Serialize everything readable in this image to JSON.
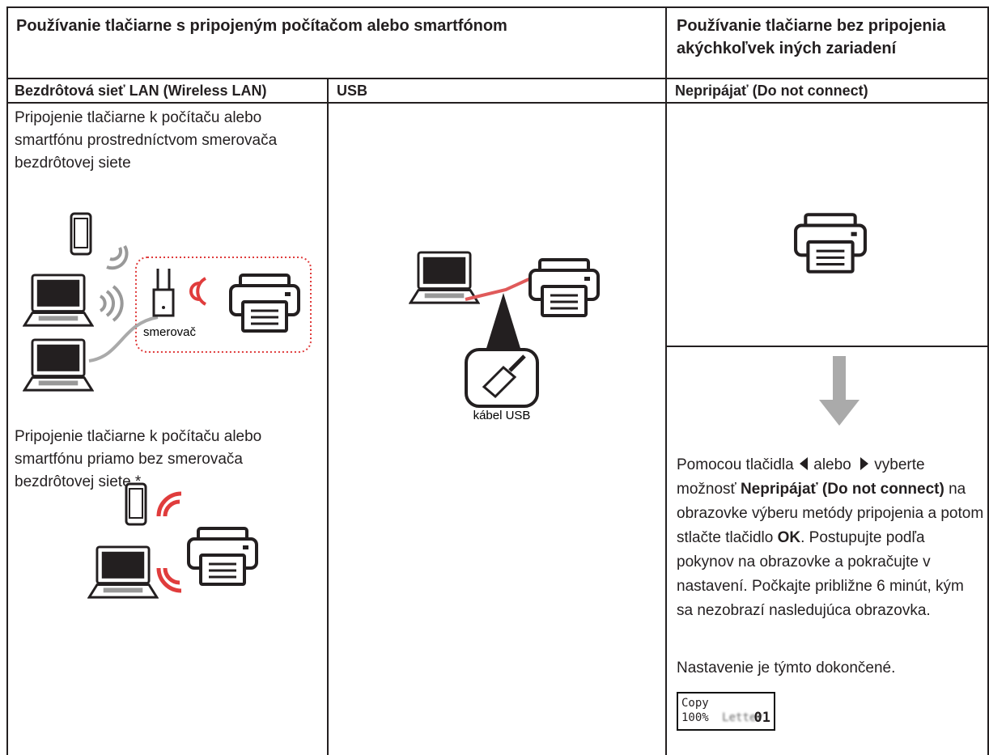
{
  "header": {
    "connected": "Používanie tlačiarne s pripojeným počítačom alebo smartfónom",
    "standalone": "Používanie tlačiarne bez pripojenia akýchkoľvek iných zariadení"
  },
  "columns": {
    "wireless": "Bezdrôtová sieť LAN (Wireless LAN)",
    "usb": "USB",
    "no_connect": "Nepripájať (Do not connect)"
  },
  "wireless": {
    "via_router": "Pripojenie tlačiarne k počítaču alebo smartfónu prostredníctvom smerovača bezdrôtovej siete",
    "router_label": "smerovač",
    "direct": "Pripojenie tlačiarne k počítaču alebo smartfónu priamo bez smerovača bezdrôtovej siete *"
  },
  "usb": {
    "cable_label": "kábel USB"
  },
  "no_connect": {
    "instruction": [
      "Pomocou tlačidla ",
      " alebo ",
      " vyberte možnosť ",
      "Nepripájať (Do not connect)",
      " na obrazovke výberu metódy pripojenia a potom stlačte tlačidlo ",
      "OK",
      ". Postupujte podľa pokynov na obrazovke a pokračujte v nastavení. Počkajte približne 6 minút, kým sa nezobrazí nasledujúca obrazovka."
    ],
    "done": "Nastavenie je týmto dokončené.",
    "screen": {
      "line1": "Copy",
      "zoom": "100%",
      "paper": "Letter",
      "copies": "01"
    }
  }
}
